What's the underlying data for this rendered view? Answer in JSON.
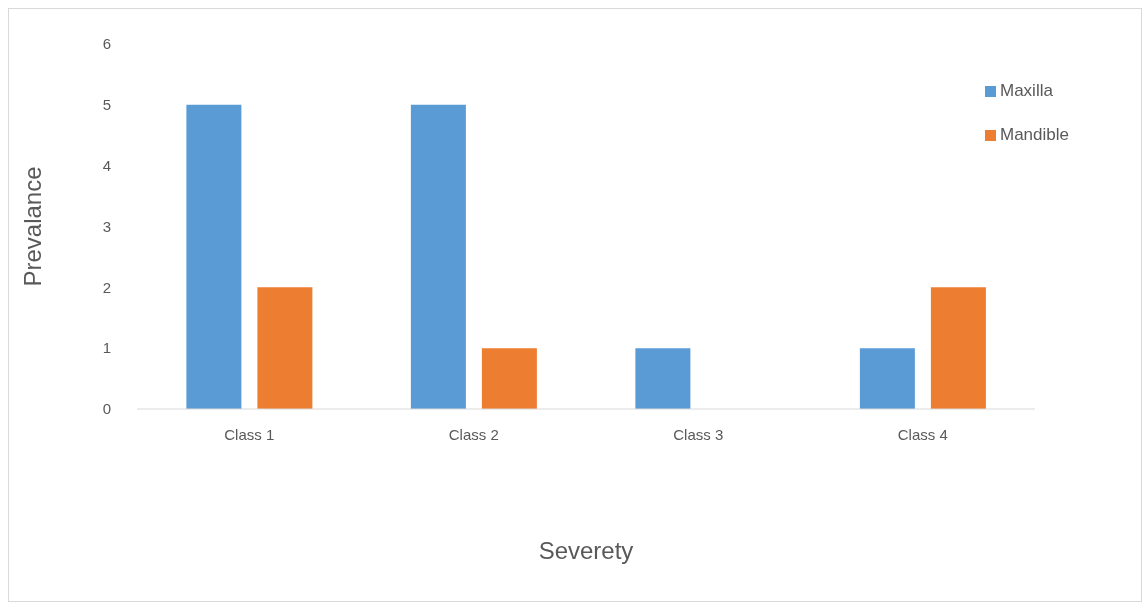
{
  "chart_data": {
    "type": "bar",
    "xlabel": "Severety",
    "ylabel": "Prevalance",
    "categories": [
      "Class 1",
      "Class 2",
      "Class 3",
      "Class 4"
    ],
    "series": [
      {
        "name": "Maxilla",
        "color": "#5b9bd5",
        "values": [
          5,
          5,
          1,
          1
        ]
      },
      {
        "name": "Mandible",
        "color": "#ed7d31",
        "values": [
          2,
          1,
          0,
          2
        ]
      }
    ],
    "ylim": [
      0,
      6
    ],
    "yticks": [
      0,
      1,
      2,
      3,
      4,
      5,
      6
    ],
    "legend": "top right"
  }
}
